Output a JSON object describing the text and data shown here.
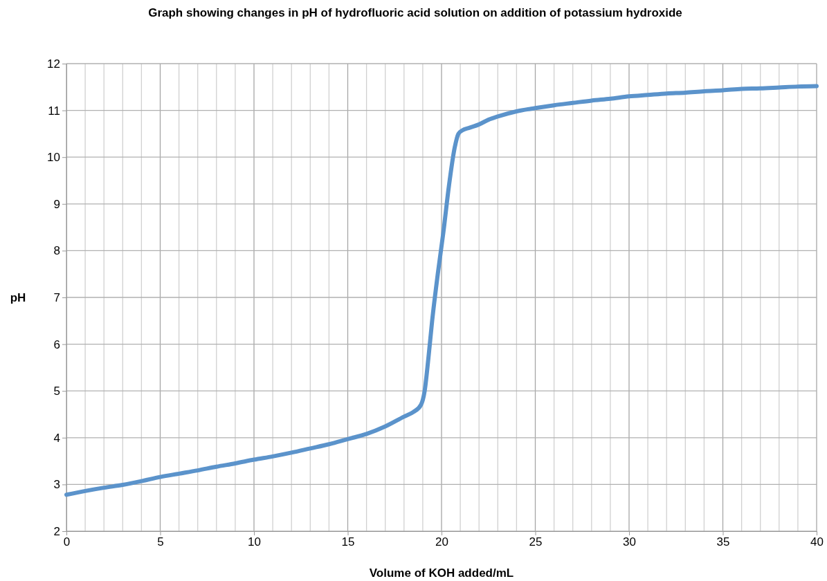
{
  "chart_data": {
    "type": "line",
    "title": "Graph showing changes in pH of hydrofluoric acid solution on addition of potassium hydroxide",
    "xlabel": "Volume of KOH added/mL",
    "ylabel": "pH",
    "xlim": [
      0,
      40
    ],
    "ylim": [
      2,
      12
    ],
    "xticks": [
      0,
      {
        "value": 1,
        "label": null
      },
      {
        "value": 2,
        "label": null
      },
      {
        "value": 3,
        "label": null
      },
      {
        "value": 4,
        "label": null
      },
      5,
      {
        "value": 6,
        "label": null
      },
      {
        "value": 7,
        "label": null
      },
      {
        "value": 8,
        "label": null
      },
      {
        "value": 9,
        "label": null
      },
      10,
      {
        "value": 11,
        "label": null
      },
      {
        "value": 12,
        "label": null
      },
      {
        "value": 13,
        "label": null
      },
      {
        "value": 14,
        "label": null
      },
      15,
      {
        "value": 16,
        "label": null
      },
      {
        "value": 17,
        "label": null
      },
      {
        "value": 18,
        "label": null
      },
      {
        "value": 19,
        "label": null
      },
      20,
      {
        "value": 21,
        "label": null
      },
      {
        "value": 22,
        "label": null
      },
      {
        "value": 23,
        "label": null
      },
      {
        "value": 24,
        "label": null
      },
      25,
      {
        "value": 26,
        "label": null
      },
      {
        "value": 27,
        "label": null
      },
      {
        "value": 28,
        "label": null
      },
      {
        "value": 29,
        "label": null
      },
      30,
      {
        "value": 31,
        "label": null
      },
      {
        "value": 32,
        "label": null
      },
      {
        "value": 33,
        "label": null
      },
      {
        "value": 34,
        "label": null
      },
      35,
      {
        "value": 36,
        "label": null
      },
      {
        "value": 37,
        "label": null
      },
      {
        "value": 38,
        "label": null
      },
      {
        "value": 39,
        "label": null
      },
      40
    ],
    "yticks": [
      2,
      3,
      4,
      5,
      6,
      7,
      8,
      9,
      10,
      11,
      12
    ],
    "grid": true,
    "marker": "none",
    "line_style": "solid",
    "x": [
      0,
      1,
      2,
      3,
      4,
      5,
      6,
      7,
      8,
      9,
      10,
      11,
      12,
      13,
      14,
      15,
      16,
      17,
      18,
      18.5,
      18.9,
      19.1,
      19.3,
      19.5,
      19.8,
      20.1,
      20.4,
      20.7,
      20.9,
      21.1,
      21.5,
      22,
      22.5,
      23,
      24,
      25,
      26,
      27,
      28,
      29,
      30,
      31,
      32,
      33,
      34,
      35,
      36,
      37,
      38,
      39,
      40
    ],
    "series": [
      {
        "color": "#5b93cb",
        "values": [
          2.78,
          2.86,
          2.93,
          2.99,
          3.07,
          3.16,
          3.23,
          3.3,
          3.38,
          3.45,
          3.53,
          3.6,
          3.68,
          3.77,
          3.86,
          3.97,
          4.08,
          4.24,
          4.45,
          4.55,
          4.7,
          5.0,
          5.7,
          6.5,
          7.5,
          8.4,
          9.4,
          10.2,
          10.5,
          10.57,
          10.63,
          10.7,
          10.8,
          10.87,
          10.98,
          11.05,
          11.11,
          11.16,
          11.21,
          11.25,
          11.3,
          11.33,
          11.36,
          11.38,
          11.41,
          11.43,
          11.46,
          11.47,
          11.49,
          11.51,
          11.52
        ]
      }
    ]
  }
}
